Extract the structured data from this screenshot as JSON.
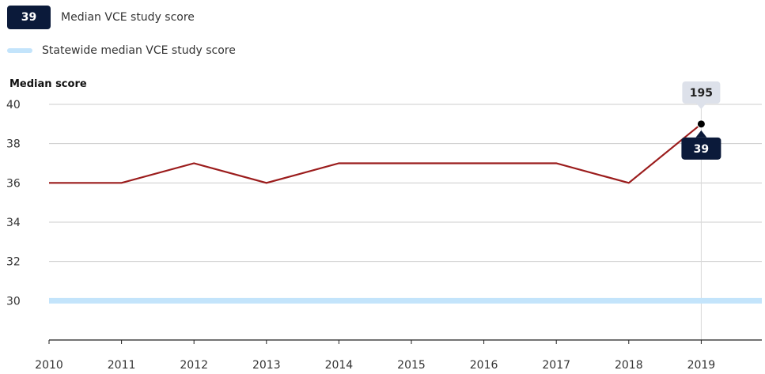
{
  "legend": {
    "median_badge": "39",
    "median_label": "Median VCE study score",
    "statewide_label": "Statewide median VCE study score"
  },
  "chart_data": {
    "type": "line",
    "ylabel": "Median score",
    "xlabel": "",
    "title": "",
    "categories": [
      "2010",
      "2011",
      "2012",
      "2013",
      "2014",
      "2015",
      "2016",
      "2017",
      "2018",
      "2019"
    ],
    "ylim": [
      28,
      40
    ],
    "yticks": [
      30,
      32,
      34,
      36,
      38,
      40
    ],
    "grid": true,
    "series": [
      {
        "name": "Median VCE study score",
        "color": "#9b1c1c",
        "values": [
          36,
          36,
          37,
          36,
          37,
          37,
          37,
          37,
          36,
          39
        ]
      },
      {
        "name": "Statewide median VCE study score",
        "color": "#c3e4fb",
        "values": [
          30,
          30,
          30,
          30,
          30,
          30,
          30,
          30,
          30,
          30
        ]
      }
    ],
    "highlight": {
      "category": "2019",
      "top_label": "195",
      "value_label": "39"
    }
  }
}
